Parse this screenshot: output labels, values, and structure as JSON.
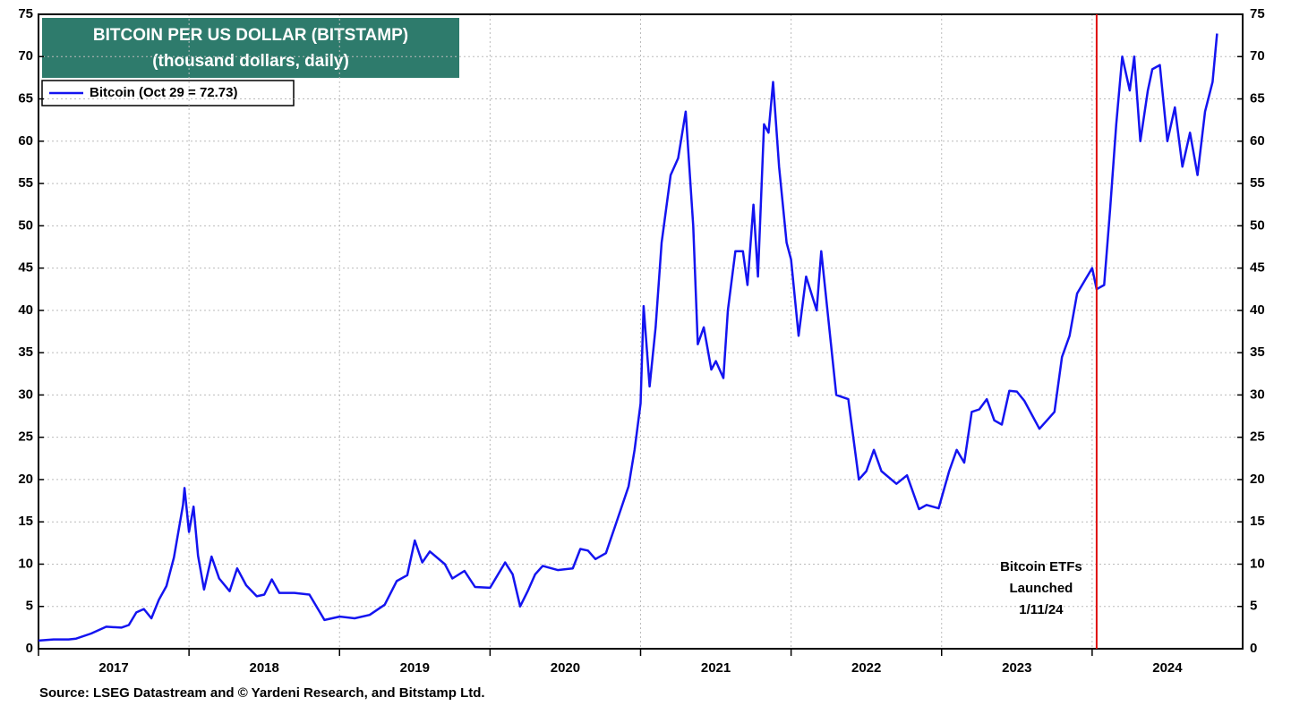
{
  "chart_data": {
    "type": "line",
    "title": "BITCOIN PER US DOLLAR (BITSTAMP)",
    "subtitle": "(thousand dollars, daily)",
    "source": "Source: LSEG Datastream and © Yardeni Research, and Bitstamp Ltd.",
    "x": [
      2017.0,
      2017.1,
      2017.2,
      2017.25,
      2017.35,
      2017.45,
      2017.55,
      2017.6,
      2017.65,
      2017.7,
      2017.75,
      2017.8,
      2017.85,
      2017.9,
      2017.96,
      2017.97,
      2018.0,
      2018.03,
      2018.06,
      2018.1,
      2018.15,
      2018.2,
      2018.27,
      2018.32,
      2018.38,
      2018.45,
      2018.5,
      2018.55,
      2018.6,
      2018.7,
      2018.8,
      2018.87,
      2018.9,
      2019.0,
      2019.1,
      2019.2,
      2019.3,
      2019.38,
      2019.45,
      2019.5,
      2019.55,
      2019.6,
      2019.7,
      2019.75,
      2019.83,
      2019.9,
      2020.0,
      2020.1,
      2020.15,
      2020.2,
      2020.25,
      2020.3,
      2020.35,
      2020.45,
      2020.55,
      2020.6,
      2020.65,
      2020.7,
      2020.77,
      2020.85,
      2020.92,
      2020.96,
      2021.0,
      2021.02,
      2021.06,
      2021.1,
      2021.14,
      2021.2,
      2021.25,
      2021.3,
      2021.35,
      2021.38,
      2021.42,
      2021.47,
      2021.5,
      2021.55,
      2021.58,
      2021.63,
      2021.68,
      2021.71,
      2021.75,
      2021.78,
      2021.82,
      2021.85,
      2021.88,
      2021.92,
      2021.97,
      2022.0,
      2022.05,
      2022.1,
      2022.17,
      2022.2,
      2022.25,
      2022.3,
      2022.38,
      2022.45,
      2022.5,
      2022.55,
      2022.6,
      2022.7,
      2022.77,
      2022.85,
      2022.9,
      2022.98,
      2023.05,
      2023.1,
      2023.15,
      2023.2,
      2023.25,
      2023.3,
      2023.35,
      2023.4,
      2023.45,
      2023.5,
      2023.55,
      2023.65,
      2023.7,
      2023.75,
      2023.8,
      2023.85,
      2023.9,
      2023.95,
      2024.0,
      2024.03,
      2024.08,
      2024.12,
      2024.16,
      2024.2,
      2024.25,
      2024.28,
      2024.32,
      2024.37,
      2024.4,
      2024.45,
      2024.5,
      2024.55,
      2024.6,
      2024.65,
      2024.7,
      2024.75,
      2024.8,
      2024.83
    ],
    "series": [
      {
        "name": "Bitcoin (Oct 29 = 72.73)",
        "color": "#1414f0",
        "values": [
          0.96,
          1.1,
          1.1,
          1.2,
          1.8,
          2.6,
          2.5,
          2.8,
          4.3,
          4.7,
          3.6,
          5.8,
          7.4,
          10.8,
          17.0,
          19.0,
          13.8,
          16.8,
          11.0,
          7.0,
          10.9,
          8.3,
          6.8,
          9.5,
          7.5,
          6.2,
          6.4,
          8.2,
          6.6,
          6.6,
          6.4,
          4.3,
          3.4,
          3.8,
          3.6,
          4.0,
          5.2,
          8.0,
          8.7,
          12.8,
          10.2,
          11.5,
          10.0,
          8.3,
          9.2,
          7.3,
          7.2,
          10.2,
          8.8,
          5.0,
          6.8,
          8.8,
          9.8,
          9.3,
          9.5,
          11.8,
          11.6,
          10.6,
          11.3,
          15.5,
          19.2,
          23.5,
          29.0,
          40.5,
          31.0,
          38.0,
          48.0,
          56.0,
          58.0,
          63.5,
          50.0,
          36.0,
          38.0,
          33.0,
          34.0,
          32.0,
          40.0,
          47.0,
          47.0,
          43.0,
          52.5,
          44.0,
          62.0,
          61.0,
          67.0,
          57.0,
          48.0,
          46.0,
          37.0,
          44.0,
          40.0,
          47.0,
          38.5,
          30.0,
          29.5,
          20.0,
          21.0,
          23.5,
          21.0,
          19.5,
          20.5,
          16.5,
          17.0,
          16.6,
          21.0,
          23.5,
          22.0,
          28.0,
          28.3,
          29.5,
          27.0,
          26.5,
          30.5,
          30.4,
          29.3,
          26.0,
          27.0,
          28.0,
          34.5,
          37.0,
          42.0,
          43.5,
          45.0,
          42.5,
          43.0,
          52.0,
          62.0,
          70.0,
          66.0,
          70.0,
          60.0,
          66.0,
          68.5,
          69.0,
          60.0,
          64.0,
          57.0,
          61.0,
          56.0,
          63.5,
          67.0,
          72.73
        ]
      }
    ],
    "xlim": [
      2017,
      2025
    ],
    "xticks": [
      2017,
      2018,
      2019,
      2020,
      2021,
      2022,
      2023,
      2024
    ],
    "ylim": [
      0,
      75
    ],
    "yticks": [
      0,
      5,
      10,
      15,
      20,
      25,
      30,
      35,
      40,
      45,
      50,
      55,
      60,
      65,
      70,
      75
    ],
    "grid": true,
    "event_line": {
      "x": 2024.03,
      "color": "#e01010",
      "text": [
        "Bitcoin ETFs",
        "Launched",
        "1/11/24"
      ]
    }
  }
}
